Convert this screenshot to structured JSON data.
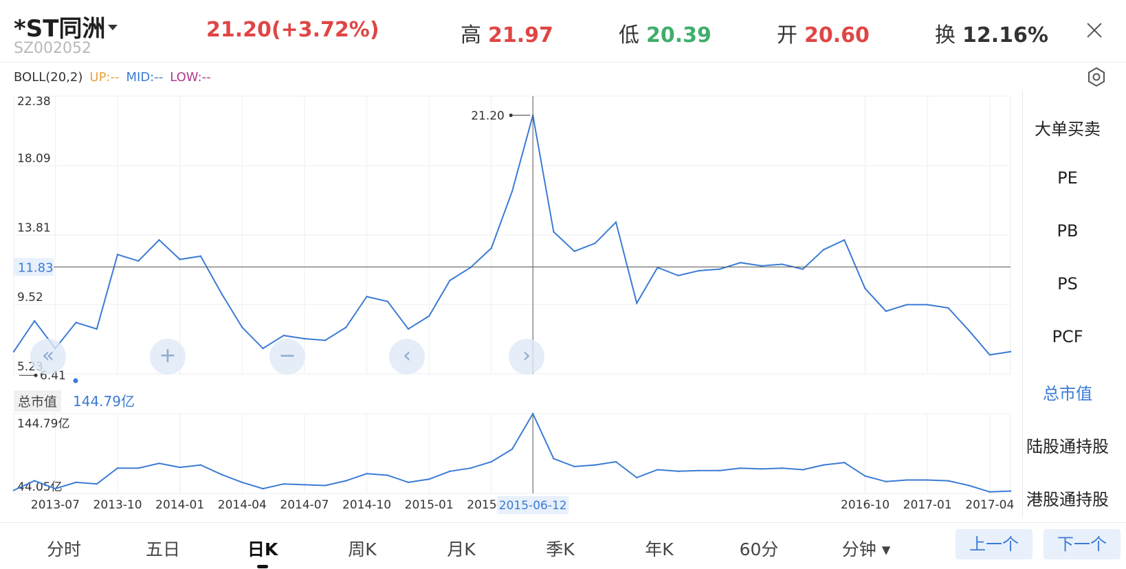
{
  "header": {
    "name": "*ST同洲",
    "code": "SZ002052",
    "price_change": "21.20(+3.72%)",
    "high_label": "高",
    "high_value": "21.97",
    "low_label": "低",
    "low_value": "20.39",
    "open_label": "开",
    "open_value": "20.60",
    "turnover_label": "换",
    "turnover_value": "12.16%"
  },
  "indicator": {
    "name": "BOLL(20,2)",
    "up": "UP:--",
    "mid": "MID:--",
    "low": "LOW:--"
  },
  "colors": {
    "up": "#e04545",
    "down": "#3fae6a",
    "line": "#3a7bd5",
    "boll_up": "#e8a23a",
    "boll_mid": "#3a7bd5",
    "boll_low": "#b03a8e"
  },
  "sidebar": {
    "items": [
      {
        "label": "大单买卖",
        "active": false
      },
      {
        "label": "PE",
        "active": false
      },
      {
        "label": "PB",
        "active": false
      },
      {
        "label": "PS",
        "active": false
      },
      {
        "label": "PCF",
        "active": false
      },
      {
        "label": "总市值",
        "active": true
      },
      {
        "label": "陆股通持股",
        "active": false
      },
      {
        "label": "港股通持股",
        "active": false
      }
    ]
  },
  "subchart": {
    "label": "总市值",
    "value": "144.79亿",
    "y_top_label": "144.79亿",
    "y_bottom_label": "44.05亿"
  },
  "crosshair": {
    "price_label": "11.83",
    "date_label": "2015-06-12",
    "peak_label": "21.20",
    "min_label": "6.41"
  },
  "chart_data": {
    "type": "line",
    "series": [
      {
        "x": [
          "2013-05",
          "2013-06",
          "2013-07",
          "2013-08",
          "2013-09",
          "2013-10",
          "2013-11",
          "2013-12",
          "2014-01",
          "2014-02",
          "2014-03",
          "2014-04",
          "2014-05",
          "2014-06",
          "2014-07",
          "2014-08",
          "2014-09",
          "2014-10",
          "2014-11",
          "2014-12",
          "2015-01",
          "2015-02",
          "2015-03",
          "2015-04",
          "2015-05",
          "2015-06",
          "2015-07",
          "2015-08",
          "2015-09",
          "2015-10",
          "2015-11",
          "2015-12",
          "2016-01",
          "2016-02",
          "2016-03",
          "2016-04",
          "2016-05",
          "2016-06",
          "2016-07",
          "2016-08",
          "2016-09",
          "2016-10",
          "2016-11",
          "2016-12",
          "2017-01",
          "2017-02",
          "2017-03",
          "2017-04",
          "2017-05"
        ],
        "values": [
          6.6,
          8.5,
          6.8,
          8.4,
          8.0,
          12.6,
          12.2,
          13.5,
          12.3,
          12.5,
          10.2,
          8.1,
          6.8,
          7.6,
          7.4,
          7.3,
          8.1,
          10.0,
          9.7,
          8.0,
          8.8,
          11.0,
          11.8,
          13.0,
          16.5,
          21.2,
          14.0,
          12.8,
          13.3,
          14.6,
          9.6,
          11.8,
          11.3,
          11.6,
          11.7,
          12.1,
          11.9,
          12.0,
          11.7,
          12.9,
          13.5,
          10.5,
          9.1,
          9.5,
          9.5,
          9.3,
          7.9,
          6.4,
          6.6
        ]
      },
      {
        "x": [
          "2013-05",
          "2013-06",
          "2013-07",
          "2013-08",
          "2013-09",
          "2013-10",
          "2013-11",
          "2013-12",
          "2014-01",
          "2014-02",
          "2014-03",
          "2014-04",
          "2014-05",
          "2014-06",
          "2014-07",
          "2014-08",
          "2014-09",
          "2014-10",
          "2014-11",
          "2014-12",
          "2015-01",
          "2015-02",
          "2015-03",
          "2015-04",
          "2015-05",
          "2015-06",
          "2015-07",
          "2015-08",
          "2015-09",
          "2015-10",
          "2015-11",
          "2015-12",
          "2016-01",
          "2016-02",
          "2016-03",
          "2016-04",
          "2016-05",
          "2016-06",
          "2016-07",
          "2016-08",
          "2016-09",
          "2016-10",
          "2016-11",
          "2016-12",
          "2017-01",
          "2017-02",
          "2017-03",
          "2017-04",
          "2017-05"
        ],
        "values": [
          48,
          60,
          50,
          58,
          56,
          76,
          76,
          82,
          77,
          80,
          68,
          58,
          50,
          56,
          55,
          54,
          60,
          69,
          67,
          58,
          62,
          72,
          76,
          84,
          100,
          144.8,
          88,
          78,
          80,
          84,
          64,
          74,
          72,
          73,
          73,
          76,
          75,
          76,
          74,
          80,
          83,
          66,
          59,
          61,
          61,
          60,
          54,
          46,
          47
        ]
      }
    ],
    "x_tick_labels": [
      "2013-07",
      "2013-10",
      "2014-01",
      "2014-04",
      "2014-07",
      "2014-10",
      "2015-01",
      "2015-04",
      "2016-10",
      "2017-01",
      "2017-04"
    ],
    "y_tick_labels": [
      "22.38",
      "18.09",
      "13.81",
      "9.52",
      "5.23"
    ],
    "ylim": [
      5.23,
      22.38
    ],
    "sub_ylim": [
      44.05,
      144.79
    ],
    "grid": true
  },
  "bottom_tabs": [
    {
      "label": "分时",
      "active": false
    },
    {
      "label": "五日",
      "active": false
    },
    {
      "label": "日K",
      "active": true
    },
    {
      "label": "周K",
      "active": false
    },
    {
      "label": "月K",
      "active": false
    },
    {
      "label": "季K",
      "active": false
    },
    {
      "label": "年K",
      "active": false
    },
    {
      "label": "60分",
      "active": false
    },
    {
      "label": "分钟",
      "active": false
    }
  ],
  "nav": {
    "prev_label": "上一个",
    "next_label": "下一个"
  }
}
